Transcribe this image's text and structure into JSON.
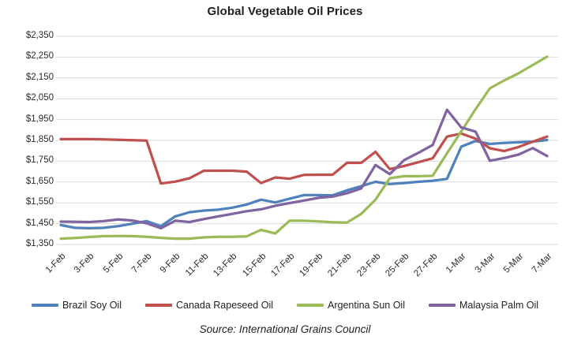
{
  "title": "Global Vegetable Oil Prices",
  "source_note": "Source: International Grains Council",
  "colors": {
    "grid": "#d9d9d9",
    "axis_text": "#2b2b2b",
    "background": "#ffffff",
    "brazil_soy": "#4f81bd",
    "canada_rapeseed": "#c0504d",
    "argentina_sun": "#9bbb59",
    "malaysia_palm": "#8064a2"
  },
  "chart_data": {
    "type": "line",
    "title": "Global Vegetable Oil Prices",
    "xlabel": "",
    "ylabel": "",
    "ylim": [
      1350,
      2350
    ],
    "y_tick_step": 100,
    "y_tick_prefix": "$",
    "grid": true,
    "legend_position": "bottom",
    "x": [
      "1-Feb",
      "2-Feb",
      "3-Feb",
      "4-Feb",
      "5-Feb",
      "6-Feb",
      "7-Feb",
      "8-Feb",
      "9-Feb",
      "10-Feb",
      "11-Feb",
      "12-Feb",
      "13-Feb",
      "14-Feb",
      "15-Feb",
      "16-Feb",
      "17-Feb",
      "18-Feb",
      "19-Feb",
      "20-Feb",
      "21-Feb",
      "22-Feb",
      "23-Feb",
      "24-Feb",
      "25-Feb",
      "26-Feb",
      "27-Feb",
      "28-Feb",
      "1-Mar",
      "2-Mar",
      "3-Mar",
      "4-Mar",
      "5-Mar",
      "6-Mar",
      "7-Mar"
    ],
    "x_tick_labels": [
      "1-Feb",
      "3-Feb",
      "5-Feb",
      "7-Feb",
      "9-Feb",
      "11-Feb",
      "13-Feb",
      "15-Feb",
      "17-Feb",
      "19-Feb",
      "21-Feb",
      "23-Feb",
      "25-Feb",
      "27-Feb",
      "1-Mar",
      "3-Mar",
      "5-Mar",
      "7-Mar"
    ],
    "series": [
      {
        "name": "Brazil Soy Oil",
        "color_key": "brazil_soy",
        "values": [
          1443,
          1430,
          1428,
          1430,
          1438,
          1450,
          1462,
          1438,
          1485,
          1505,
          1513,
          1517,
          1527,
          1542,
          1565,
          1552,
          1570,
          1587,
          1587,
          1586,
          1610,
          1630,
          1651,
          1640,
          1645,
          1651,
          1656,
          1665,
          1820,
          1847,
          1833,
          1838,
          1841,
          1844,
          1852
        ]
      },
      {
        "name": "Canada Rapeseed Oil",
        "color_key": "canada_rapeseed",
        "values": [
          1856,
          1856,
          1856,
          1855,
          1853,
          1851,
          1849,
          1643,
          1652,
          1668,
          1704,
          1704,
          1704,
          1700,
          1645,
          1672,
          1666,
          1684,
          1685,
          1685,
          1742,
          1742,
          1795,
          1712,
          1727,
          1745,
          1764,
          1868,
          1883,
          1858,
          1812,
          1799,
          1818,
          1844,
          1868
        ]
      },
      {
        "name": "Argentina Sun Oil",
        "color_key": "argentina_sun",
        "values": [
          1378,
          1381,
          1386,
          1390,
          1391,
          1390,
          1387,
          1382,
          1378,
          1378,
          1384,
          1387,
          1387,
          1389,
          1420,
          1403,
          1464,
          1464,
          1461,
          1457,
          1455,
          1497,
          1565,
          1668,
          1678,
          1678,
          1680,
          1788,
          1893,
          2000,
          2100,
          2138,
          2172,
          2212,
          2252
        ]
      },
      {
        "name": "Malaysia Palm Oil",
        "color_key": "malaysia_palm",
        "values": [
          1460,
          1459,
          1458,
          1462,
          1470,
          1465,
          1452,
          1428,
          1464,
          1458,
          1472,
          1485,
          1497,
          1510,
          1519,
          1536,
          1549,
          1561,
          1574,
          1580,
          1596,
          1619,
          1732,
          1688,
          1755,
          1790,
          1828,
          1997,
          1912,
          1892,
          1752,
          1765,
          1782,
          1813,
          1775
        ]
      }
    ]
  }
}
